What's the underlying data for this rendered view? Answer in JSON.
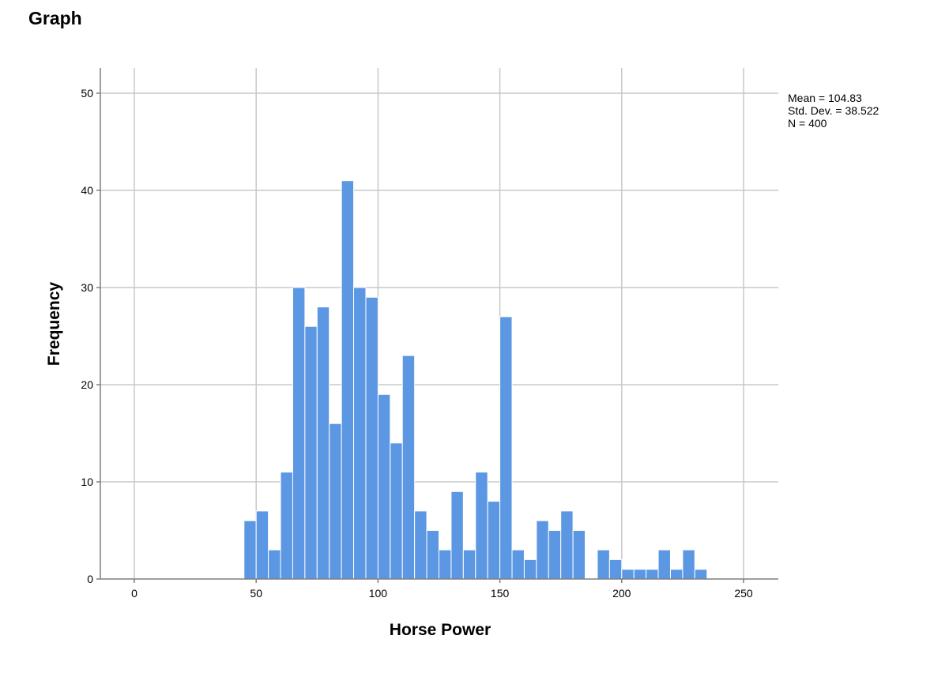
{
  "page": {
    "title": "Graph"
  },
  "chart_data": {
    "type": "bar",
    "subtype": "histogram",
    "xlabel": "Horse Power",
    "ylabel": "Frequency",
    "xlim": [
      -13,
      265
    ],
    "ylim": [
      0,
      52
    ],
    "xticks": [
      0,
      50,
      100,
      150,
      200,
      250
    ],
    "yticks": [
      0,
      10,
      20,
      30,
      40,
      50
    ],
    "grid": true,
    "bin_width": 5,
    "bar_color": "#5b97e3",
    "bins": [
      {
        "start": 45,
        "count": 6
      },
      {
        "start": 50,
        "count": 7
      },
      {
        "start": 55,
        "count": 3
      },
      {
        "start": 60,
        "count": 11
      },
      {
        "start": 65,
        "count": 30
      },
      {
        "start": 70,
        "count": 26
      },
      {
        "start": 75,
        "count": 28
      },
      {
        "start": 80,
        "count": 16
      },
      {
        "start": 85,
        "count": 41
      },
      {
        "start": 90,
        "count": 30
      },
      {
        "start": 95,
        "count": 29
      },
      {
        "start": 100,
        "count": 19
      },
      {
        "start": 105,
        "count": 14
      },
      {
        "start": 110,
        "count": 23
      },
      {
        "start": 115,
        "count": 7
      },
      {
        "start": 120,
        "count": 5
      },
      {
        "start": 125,
        "count": 3
      },
      {
        "start": 130,
        "count": 9
      },
      {
        "start": 135,
        "count": 3
      },
      {
        "start": 140,
        "count": 11
      },
      {
        "start": 145,
        "count": 8
      },
      {
        "start": 150,
        "count": 27
      },
      {
        "start": 155,
        "count": 3
      },
      {
        "start": 160,
        "count": 2
      },
      {
        "start": 165,
        "count": 6
      },
      {
        "start": 170,
        "count": 5
      },
      {
        "start": 175,
        "count": 7
      },
      {
        "start": 180,
        "count": 5
      },
      {
        "start": 190,
        "count": 3
      },
      {
        "start": 195,
        "count": 2
      },
      {
        "start": 200,
        "count": 1
      },
      {
        "start": 205,
        "count": 1
      },
      {
        "start": 210,
        "count": 1
      },
      {
        "start": 215,
        "count": 3
      },
      {
        "start": 220,
        "count": 1
      },
      {
        "start": 225,
        "count": 3
      },
      {
        "start": 230,
        "count": 1
      }
    ],
    "stats": {
      "mean": "Mean = 104.83",
      "std_dev": "Std. Dev. = 38.522",
      "n": "N = 400"
    }
  }
}
